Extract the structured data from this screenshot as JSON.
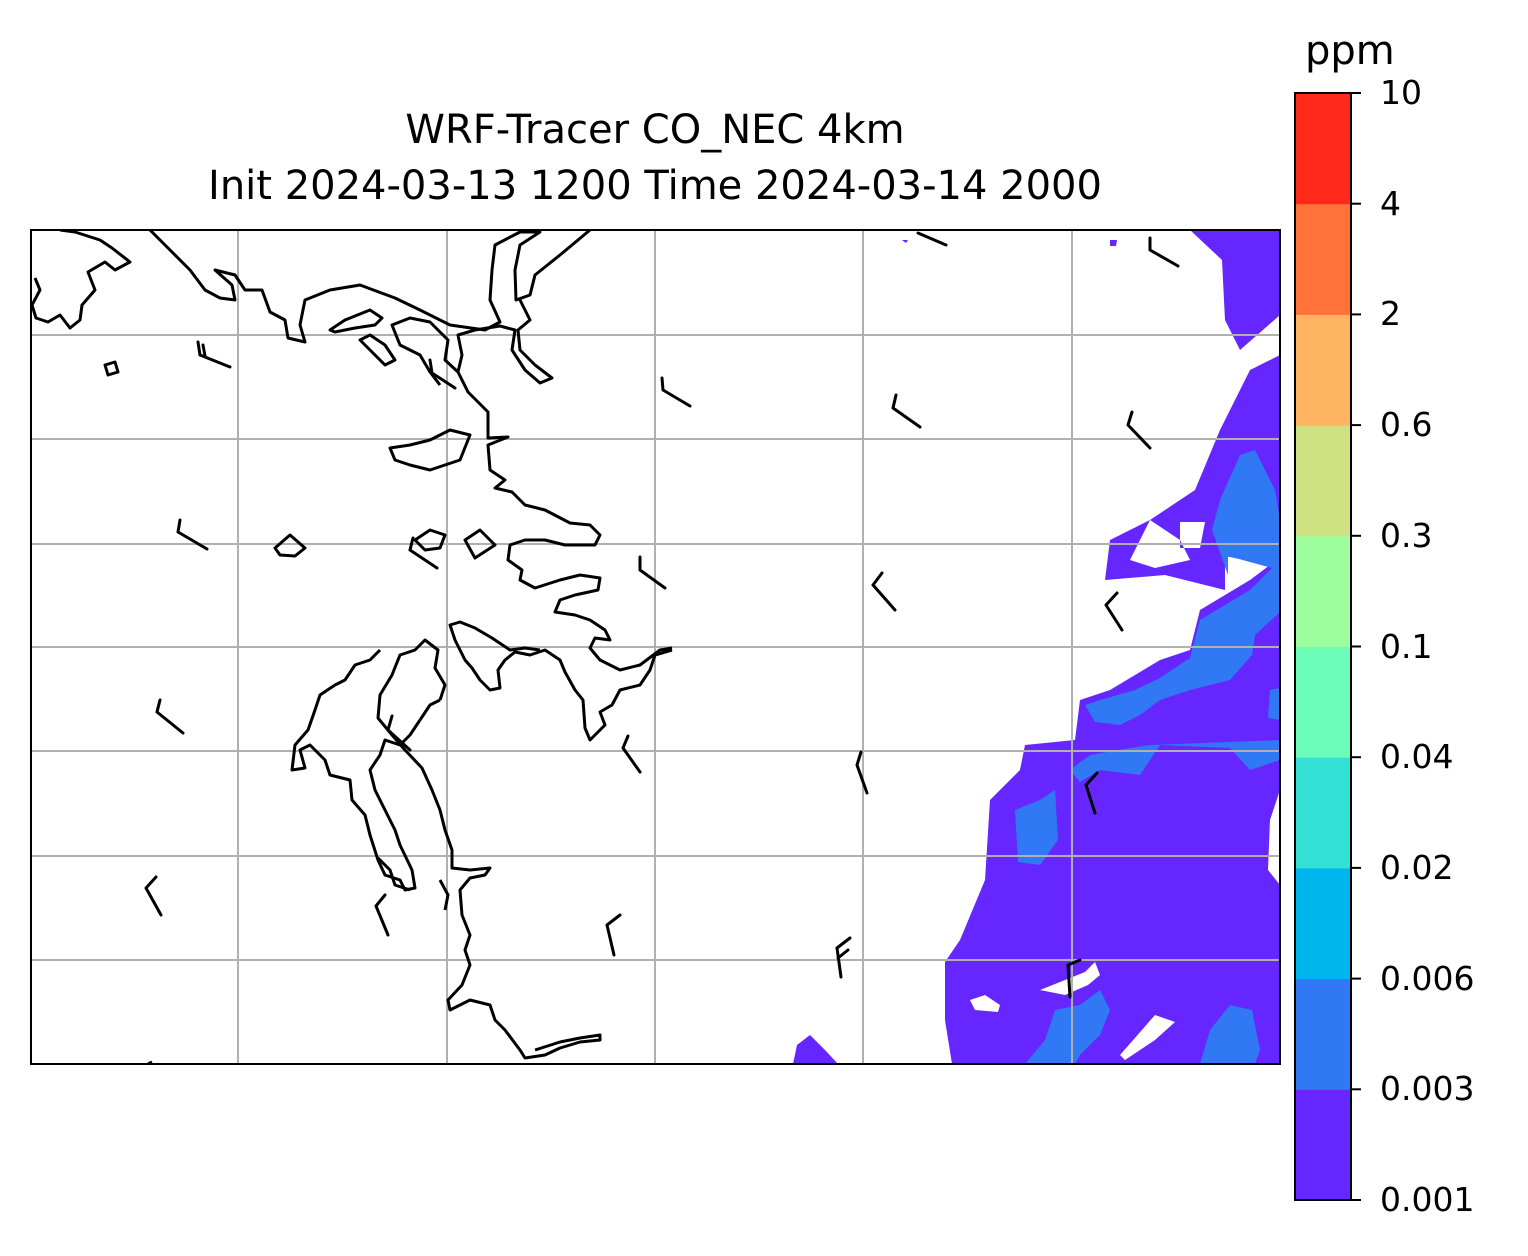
{
  "title": {
    "line1": "WRF-Tracer CO_NEC 4km",
    "line2": "Init 2024-03-13 1200 Time 2024-03-14 2000"
  },
  "colorbar": {
    "unit_label": "ppm",
    "levels": [
      "0.001",
      "0.003",
      "0.006",
      "0.02",
      "0.04",
      "0.1",
      "0.3",
      "0.6",
      "2",
      "4",
      "10"
    ],
    "colors": [
      "#6526ff",
      "#3178f4",
      "#00b6ee",
      "#32e0d6",
      "#6bfcb8",
      "#9dfe9f",
      "#cfe282",
      "#ffb462",
      "#ff7238",
      "#ff2a1a"
    ]
  },
  "map": {
    "gridlines": true,
    "coastline_color": "#000000",
    "gridline_color": "#b0b0b0"
  }
}
